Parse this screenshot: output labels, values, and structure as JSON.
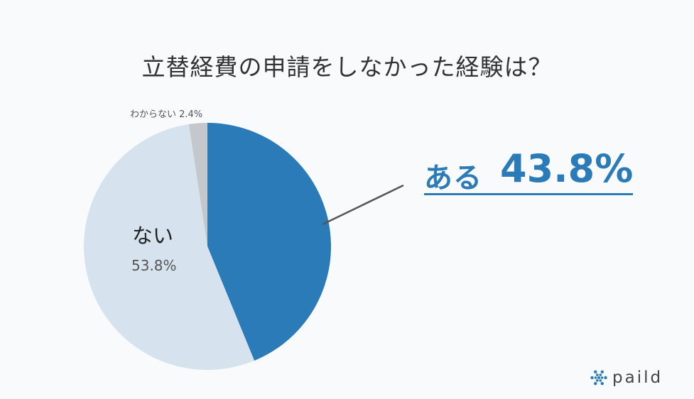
{
  "chart_data": {
    "type": "pie",
    "title": "立替経費の申請をしなかった経験は？",
    "slices": [
      {
        "label": "ある",
        "value": 43.8,
        "value_label": "43.8%",
        "color": "#2c7bb9"
      },
      {
        "label": "ない",
        "value": 53.8,
        "value_label": "53.8%",
        "color": "#d6e3ef"
      },
      {
        "label": "わからない",
        "value": 2.4,
        "value_label": "2.4%",
        "color": "#c4c8cc"
      }
    ],
    "wakaranai_label": "わからない 2.4%",
    "start": "12 o'clock",
    "direction": "clockwise",
    "callout_line_color": "#555555"
  },
  "brand": {
    "name": "paild",
    "icon": "asterisk-logo-icon",
    "color": "#2c7bb9"
  }
}
